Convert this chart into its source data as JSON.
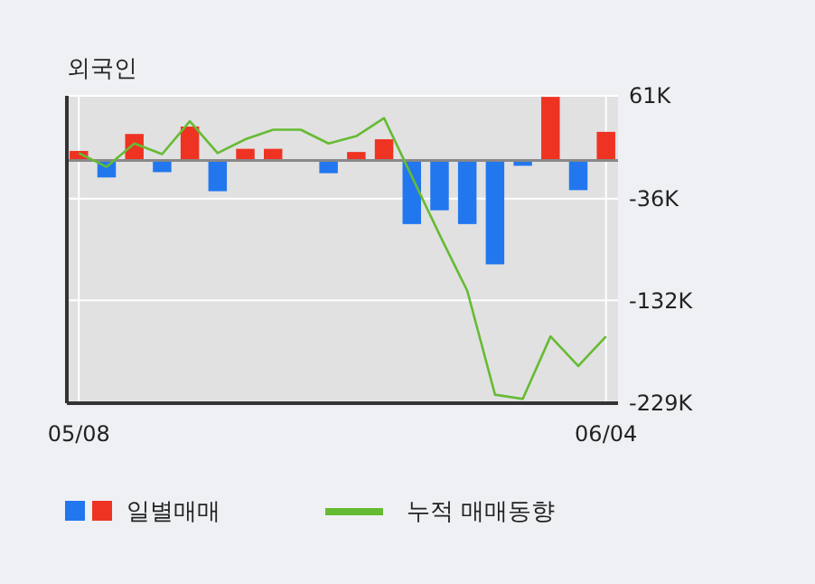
{
  "chart_data": {
    "type": "bar",
    "title": "외국인",
    "categories": [
      "05/08",
      null,
      null,
      null,
      null,
      null,
      null,
      null,
      null,
      null,
      null,
      null,
      null,
      null,
      null,
      null,
      null,
      null,
      null,
      "06/04"
    ],
    "series": [
      {
        "name": "일별매매",
        "colors": [
          "#ee3322",
          "#2277ee",
          "#ee3322",
          "#2277ee",
          "#ee3322",
          "#2277ee",
          "#ee3322",
          "#ee3322",
          "#ee3322",
          "#2277ee",
          "#ee3322",
          "#ee3322",
          "#2277ee",
          "#2277ee",
          "#2277ee",
          "#2277ee",
          "#2277ee",
          "#ee3322",
          "#2277ee",
          "#ee3322"
        ],
        "values": [
          9,
          -16,
          25,
          -11,
          32,
          -29,
          11,
          11,
          0,
          -12,
          8,
          20,
          -60,
          -47,
          -60,
          -98,
          -5,
          60,
          -28,
          27
        ]
      },
      {
        "type": "line",
        "name": "누적 매매동향",
        "color": "#66bb33",
        "values": [
          7,
          -6,
          16,
          6,
          37,
          7,
          20,
          29,
          29,
          16,
          23,
          40,
          -15,
          -70,
          -123,
          -221,
          -225,
          -166,
          -194,
          -166
        ]
      }
    ],
    "ylim": [
      -229,
      61
    ],
    "yticks": [
      {
        "value": 61,
        "label": "61K"
      },
      {
        "value": -36,
        "label": "-36K"
      },
      {
        "value": -132,
        "label": "-132K"
      },
      {
        "value": -229,
        "label": "-229K"
      }
    ],
    "ref_lines": [
      {
        "axis": "y",
        "value": 0,
        "color": "#888888"
      }
    ],
    "grid": true,
    "legend": "bottom"
  }
}
